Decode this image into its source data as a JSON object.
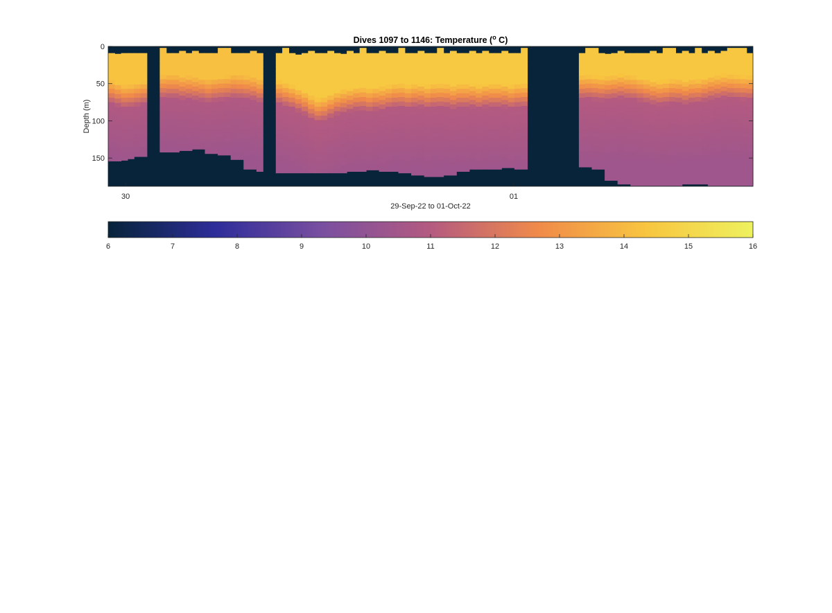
{
  "chart_data": {
    "type": "heatmap",
    "title_main": "Dives 1097 to 1146: Temperature (",
    "title_sup": "o",
    "title_end": " C)",
    "xlabel": "29-Sep-22 to 01-Oct-22",
    "ylabel": "Depth (m)",
    "x_ticks": [
      {
        "label": "30",
        "t": 0.027
      },
      {
        "label": "01",
        "t": 0.629
      }
    ],
    "y_ticks": [
      0,
      50,
      100,
      150
    ],
    "ylim": [
      0,
      188
    ],
    "colorbar": {
      "ticks": [
        6,
        7,
        8,
        9,
        10,
        11,
        12,
        13,
        14,
        15,
        16
      ],
      "range": [
        6,
        16
      ],
      "stops": [
        "#07243a",
        "#2e2d9a",
        "#7a4fa0",
        "#b45a80",
        "#f08a4a",
        "#f8c540",
        "#eef15e"
      ]
    },
    "fill_color": "#07243a",
    "columns": [
      {
        "t0": 0.0,
        "t1": 0.01,
        "top": 9,
        "bottom": 154,
        "mix": 52,
        "warm": 14.3,
        "deep": 10.3
      },
      {
        "t0": 0.01,
        "t1": 0.02,
        "top": 10,
        "bottom": 154,
        "mix": 55,
        "warm": 14.3,
        "deep": 10.3
      },
      {
        "t0": 0.02,
        "t1": 0.03,
        "top": 9,
        "bottom": 153,
        "mix": 58,
        "warm": 14.3,
        "deep": 10.3
      },
      {
        "t0": 0.03,
        "t1": 0.04,
        "top": 9,
        "bottom": 151,
        "mix": 57,
        "warm": 14.3,
        "deep": 10.3
      },
      {
        "t0": 0.04,
        "t1": 0.05,
        "top": 9,
        "bottom": 148,
        "mix": 55,
        "warm": 14.3,
        "deep": 10.3
      },
      {
        "t0": 0.05,
        "t1": 0.06,
        "top": 9,
        "bottom": 148,
        "mix": 53,
        "warm": 14.3,
        "deep": 10.3
      },
      {
        "t0": 0.06,
        "t1": 0.08,
        "gap": true
      },
      {
        "t0": 0.08,
        "t1": 0.09,
        "top": 2,
        "bottom": 142,
        "mix": 45,
        "warm": 14.2,
        "deep": 10.3
      },
      {
        "t0": 0.09,
        "t1": 0.1,
        "top": 9,
        "bottom": 142,
        "mix": 44,
        "warm": 14.2,
        "deep": 10.3
      },
      {
        "t0": 0.1,
        "t1": 0.11,
        "top": 9,
        "bottom": 142,
        "mix": 44,
        "warm": 14.2,
        "deep": 10.3
      },
      {
        "t0": 0.11,
        "t1": 0.12,
        "top": 6,
        "bottom": 140,
        "mix": 46,
        "warm": 14.2,
        "deep": 10.3
      },
      {
        "t0": 0.12,
        "t1": 0.13,
        "top": 9,
        "bottom": 140,
        "mix": 46,
        "warm": 14.2,
        "deep": 10.3
      },
      {
        "t0": 0.13,
        "t1": 0.14,
        "top": 6,
        "bottom": 138,
        "mix": 47,
        "warm": 14.2,
        "deep": 10.3
      },
      {
        "t0": 0.14,
        "t1": 0.15,
        "top": 9,
        "bottom": 138,
        "mix": 48,
        "warm": 14.2,
        "deep": 10.3
      },
      {
        "t0": 0.15,
        "t1": 0.16,
        "top": 9,
        "bottom": 144,
        "mix": 50,
        "warm": 14.2,
        "deep": 10.3
      },
      {
        "t0": 0.16,
        "t1": 0.17,
        "top": 9,
        "bottom": 144,
        "mix": 48,
        "warm": 14.2,
        "deep": 10.3
      },
      {
        "t0": 0.17,
        "t1": 0.18,
        "top": 2,
        "bottom": 146,
        "mix": 47,
        "warm": 14.2,
        "deep": 10.3
      },
      {
        "t0": 0.18,
        "t1": 0.19,
        "top": 2,
        "bottom": 146,
        "mix": 46,
        "warm": 14.2,
        "deep": 10.3
      },
      {
        "t0": 0.19,
        "t1": 0.2,
        "top": 9,
        "bottom": 152,
        "mix": 44,
        "warm": 14.2,
        "deep": 10.3
      },
      {
        "t0": 0.2,
        "t1": 0.21,
        "top": 9,
        "bottom": 152,
        "mix": 45,
        "warm": 14.2,
        "deep": 10.3
      },
      {
        "t0": 0.21,
        "t1": 0.22,
        "top": 9,
        "bottom": 165,
        "mix": 46,
        "warm": 14.2,
        "deep": 10.3
      },
      {
        "t0": 0.22,
        "t1": 0.23,
        "top": 6,
        "bottom": 165,
        "mix": 47,
        "warm": 14.2,
        "deep": 10.3
      },
      {
        "t0": 0.23,
        "t1": 0.24,
        "top": 9,
        "bottom": 168,
        "mix": 50,
        "warm": 14.2,
        "deep": 10.3
      },
      {
        "t0": 0.24,
        "t1": 0.26,
        "gap": true
      },
      {
        "t0": 0.26,
        "t1": 0.27,
        "top": 9,
        "bottom": 170,
        "mix": 52,
        "warm": 14.5,
        "deep": 10.4
      },
      {
        "t0": 0.27,
        "t1": 0.28,
        "top": 2,
        "bottom": 170,
        "mix": 55,
        "warm": 14.5,
        "deep": 10.4
      },
      {
        "t0": 0.28,
        "t1": 0.29,
        "top": 9,
        "bottom": 170,
        "mix": 58,
        "warm": 14.5,
        "deep": 10.4
      },
      {
        "t0": 0.29,
        "t1": 0.3,
        "top": 11,
        "bottom": 170,
        "mix": 62,
        "warm": 14.5,
        "deep": 10.4
      },
      {
        "t0": 0.3,
        "t1": 0.31,
        "top": 9,
        "bottom": 170,
        "mix": 66,
        "warm": 14.5,
        "deep": 10.4
      },
      {
        "t0": 0.31,
        "t1": 0.32,
        "top": 6,
        "bottom": 170,
        "mix": 72,
        "warm": 14.5,
        "deep": 10.4
      },
      {
        "t0": 0.32,
        "t1": 0.33,
        "top": 9,
        "bottom": 170,
        "mix": 76,
        "warm": 14.5,
        "deep": 10.4
      },
      {
        "t0": 0.33,
        "t1": 0.34,
        "top": 9,
        "bottom": 170,
        "mix": 74,
        "warm": 14.5,
        "deep": 10.4
      },
      {
        "t0": 0.34,
        "t1": 0.35,
        "top": 6,
        "bottom": 170,
        "mix": 70,
        "warm": 14.5,
        "deep": 10.4
      },
      {
        "t0": 0.35,
        "t1": 0.36,
        "top": 9,
        "bottom": 170,
        "mix": 66,
        "warm": 14.5,
        "deep": 10.4
      },
      {
        "t0": 0.36,
        "t1": 0.37,
        "top": 10,
        "bottom": 170,
        "mix": 64,
        "warm": 14.5,
        "deep": 10.4
      },
      {
        "t0": 0.37,
        "t1": 0.38,
        "top": 6,
        "bottom": 168,
        "mix": 62,
        "warm": 14.5,
        "deep": 10.4
      },
      {
        "t0": 0.38,
        "t1": 0.39,
        "top": 9,
        "bottom": 168,
        "mix": 60,
        "warm": 14.5,
        "deep": 10.4
      },
      {
        "t0": 0.39,
        "t1": 0.4,
        "top": 2,
        "bottom": 168,
        "mix": 60,
        "warm": 14.5,
        "deep": 10.4
      },
      {
        "t0": 0.4,
        "t1": 0.41,
        "top": 9,
        "bottom": 166,
        "mix": 62,
        "warm": 14.5,
        "deep": 10.4
      },
      {
        "t0": 0.41,
        "t1": 0.42,
        "top": 9,
        "bottom": 166,
        "mix": 60,
        "warm": 14.5,
        "deep": 10.4
      },
      {
        "t0": 0.42,
        "t1": 0.43,
        "top": 6,
        "bottom": 168,
        "mix": 60,
        "warm": 14.5,
        "deep": 10.4
      },
      {
        "t0": 0.43,
        "t1": 0.44,
        "top": 9,
        "bottom": 168,
        "mix": 58,
        "warm": 14.5,
        "deep": 10.4
      },
      {
        "t0": 0.44,
        "t1": 0.45,
        "top": 9,
        "bottom": 168,
        "mix": 56,
        "warm": 14.5,
        "deep": 10.4
      },
      {
        "t0": 0.45,
        "t1": 0.46,
        "top": 2,
        "bottom": 170,
        "mix": 56,
        "warm": 14.5,
        "deep": 10.4
      },
      {
        "t0": 0.46,
        "t1": 0.47,
        "top": 9,
        "bottom": 170,
        "mix": 58,
        "warm": 14.5,
        "deep": 10.4
      },
      {
        "t0": 0.47,
        "t1": 0.48,
        "top": 9,
        "bottom": 173,
        "mix": 56,
        "warm": 14.5,
        "deep": 10.4
      },
      {
        "t0": 0.48,
        "t1": 0.49,
        "top": 6,
        "bottom": 173,
        "mix": 56,
        "warm": 14.5,
        "deep": 10.4
      },
      {
        "t0": 0.49,
        "t1": 0.5,
        "top": 9,
        "bottom": 175,
        "mix": 58,
        "warm": 14.5,
        "deep": 10.4
      },
      {
        "t0": 0.5,
        "t1": 0.51,
        "top": 9,
        "bottom": 175,
        "mix": 56,
        "warm": 14.5,
        "deep": 10.4
      },
      {
        "t0": 0.51,
        "t1": 0.52,
        "top": 2,
        "bottom": 175,
        "mix": 56,
        "warm": 14.5,
        "deep": 10.4
      },
      {
        "t0": 0.52,
        "t1": 0.53,
        "top": 9,
        "bottom": 173,
        "mix": 56,
        "warm": 14.5,
        "deep": 10.4
      },
      {
        "t0": 0.53,
        "t1": 0.54,
        "top": 6,
        "bottom": 173,
        "mix": 58,
        "warm": 14.5,
        "deep": 10.4
      },
      {
        "t0": 0.54,
        "t1": 0.55,
        "top": 9,
        "bottom": 168,
        "mix": 56,
        "warm": 14.5,
        "deep": 10.4
      },
      {
        "t0": 0.55,
        "t1": 0.56,
        "top": 9,
        "bottom": 168,
        "mix": 56,
        "warm": 14.5,
        "deep": 10.4
      },
      {
        "t0": 0.56,
        "t1": 0.57,
        "top": 6,
        "bottom": 165,
        "mix": 56,
        "warm": 14.5,
        "deep": 10.4
      },
      {
        "t0": 0.57,
        "t1": 0.58,
        "top": 9,
        "bottom": 165,
        "mix": 58,
        "warm": 14.5,
        "deep": 10.4
      },
      {
        "t0": 0.58,
        "t1": 0.59,
        "top": 6,
        "bottom": 165,
        "mix": 56,
        "warm": 14.5,
        "deep": 10.4
      },
      {
        "t0": 0.59,
        "t1": 0.6,
        "top": 9,
        "bottom": 165,
        "mix": 56,
        "warm": 14.5,
        "deep": 10.4
      },
      {
        "t0": 0.6,
        "t1": 0.61,
        "top": 9,
        "bottom": 165,
        "mix": 56,
        "warm": 14.5,
        "deep": 10.4
      },
      {
        "t0": 0.61,
        "t1": 0.62,
        "top": 6,
        "bottom": 163,
        "mix": 56,
        "warm": 14.5,
        "deep": 10.4
      },
      {
        "t0": 0.62,
        "t1": 0.63,
        "top": 9,
        "bottom": 163,
        "mix": 58,
        "warm": 14.5,
        "deep": 10.4
      },
      {
        "t0": 0.63,
        "t1": 0.64,
        "top": 9,
        "bottom": 165,
        "mix": 56,
        "warm": 14.5,
        "deep": 10.4
      },
      {
        "t0": 0.64,
        "t1": 0.65,
        "top": 2,
        "bottom": 165,
        "mix": 56,
        "warm": 14.5,
        "deep": 10.4
      },
      {
        "t0": 0.65,
        "t1": 0.73,
        "gap": true
      },
      {
        "t0": 0.73,
        "t1": 0.74,
        "top": 9,
        "bottom": 162,
        "mix": 45,
        "warm": 14.4,
        "deep": 10.4
      },
      {
        "t0": 0.74,
        "t1": 0.75,
        "top": 2,
        "bottom": 162,
        "mix": 45,
        "warm": 14.4,
        "deep": 10.4
      },
      {
        "t0": 0.75,
        "t1": 0.76,
        "top": 2,
        "bottom": 165,
        "mix": 46,
        "warm": 14.4,
        "deep": 10.4
      },
      {
        "t0": 0.76,
        "t1": 0.77,
        "top": 9,
        "bottom": 165,
        "mix": 47,
        "warm": 14.4,
        "deep": 10.4
      },
      {
        "t0": 0.77,
        "t1": 0.78,
        "top": 10,
        "bottom": 180,
        "mix": 46,
        "warm": 14.4,
        "deep": 10.4
      },
      {
        "t0": 0.78,
        "t1": 0.79,
        "top": 9,
        "bottom": 180,
        "mix": 45,
        "warm": 14.4,
        "deep": 10.4
      },
      {
        "t0": 0.79,
        "t1": 0.8,
        "top": 6,
        "bottom": 185,
        "mix": 44,
        "warm": 14.4,
        "deep": 10.4
      },
      {
        "t0": 0.8,
        "t1": 0.81,
        "top": 9,
        "bottom": 185,
        "mix": 45,
        "warm": 14.4,
        "deep": 10.4
      },
      {
        "t0": 0.81,
        "t1": 0.82,
        "top": 9,
        "bottom": 187,
        "mix": 46,
        "warm": 14.4,
        "deep": 10.4
      },
      {
        "t0": 0.82,
        "t1": 0.83,
        "top": 9,
        "bottom": 187,
        "mix": 48,
        "warm": 14.4,
        "deep": 10.4
      },
      {
        "t0": 0.83,
        "t1": 0.84,
        "top": 9,
        "bottom": 187,
        "mix": 50,
        "warm": 14.4,
        "deep": 10.4
      },
      {
        "t0": 0.84,
        "t1": 0.85,
        "top": 6,
        "bottom": 187,
        "mix": 52,
        "warm": 14.4,
        "deep": 10.4
      },
      {
        "t0": 0.85,
        "t1": 0.86,
        "top": 9,
        "bottom": 187,
        "mix": 53,
        "warm": 14.4,
        "deep": 10.4
      },
      {
        "t0": 0.86,
        "t1": 0.87,
        "top": 2,
        "bottom": 187,
        "mix": 52,
        "warm": 14.4,
        "deep": 10.4
      },
      {
        "t0": 0.87,
        "t1": 0.88,
        "top": 2,
        "bottom": 187,
        "mix": 50,
        "warm": 14.4,
        "deep": 10.4
      },
      {
        "t0": 0.88,
        "t1": 0.89,
        "top": 9,
        "bottom": 187,
        "mix": 50,
        "warm": 14.4,
        "deep": 10.4
      },
      {
        "t0": 0.89,
        "t1": 0.9,
        "top": 6,
        "bottom": 185,
        "mix": 52,
        "warm": 14.4,
        "deep": 10.4
      },
      {
        "t0": 0.9,
        "t1": 0.91,
        "top": 9,
        "bottom": 185,
        "mix": 50,
        "warm": 14.4,
        "deep": 10.4
      },
      {
        "t0": 0.91,
        "t1": 0.92,
        "top": 2,
        "bottom": 185,
        "mix": 50,
        "warm": 14.4,
        "deep": 10.4
      },
      {
        "t0": 0.92,
        "t1": 0.93,
        "top": 9,
        "bottom": 185,
        "mix": 48,
        "warm": 14.4,
        "deep": 10.4
      },
      {
        "t0": 0.93,
        "t1": 0.94,
        "top": 6,
        "bottom": 187,
        "mix": 46,
        "warm": 14.4,
        "deep": 10.4
      },
      {
        "t0": 0.94,
        "t1": 0.95,
        "top": 9,
        "bottom": 187,
        "mix": 45,
        "warm": 14.4,
        "deep": 10.4
      },
      {
        "t0": 0.95,
        "t1": 0.96,
        "top": 6,
        "bottom": 187,
        "mix": 44,
        "warm": 14.4,
        "deep": 10.4
      },
      {
        "t0": 0.96,
        "t1": 0.97,
        "top": 2,
        "bottom": 187,
        "mix": 44,
        "warm": 14.4,
        "deep": 10.4
      },
      {
        "t0": 0.97,
        "t1": 0.98,
        "top": 2,
        "bottom": 187,
        "mix": 45,
        "warm": 14.4,
        "deep": 10.4
      },
      {
        "t0": 0.98,
        "t1": 0.99,
        "top": 2,
        "bottom": 187,
        "mix": 46,
        "warm": 14.4,
        "deep": 10.4
      },
      {
        "t0": 0.99,
        "t1": 1.0,
        "top": 9,
        "bottom": 187,
        "mix": 46,
        "warm": 14.4,
        "deep": 10.4
      }
    ]
  }
}
